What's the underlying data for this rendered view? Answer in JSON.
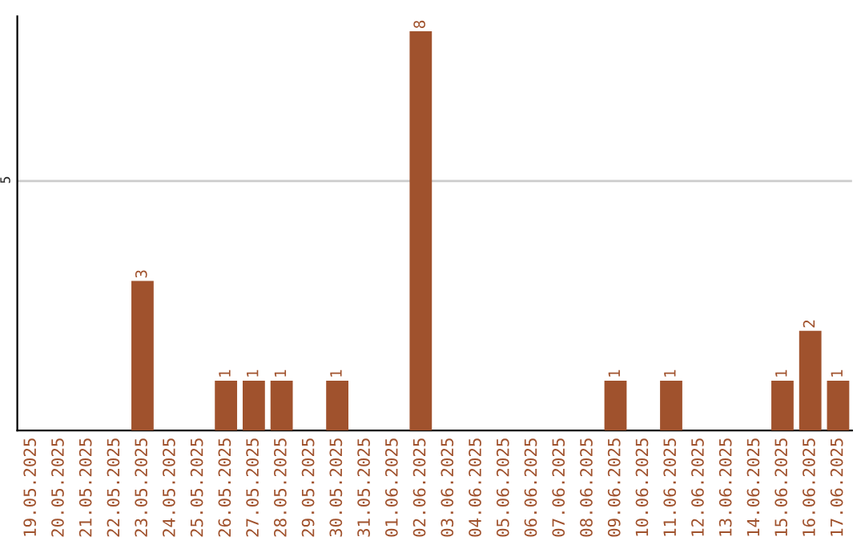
{
  "chart_data": {
    "type": "bar",
    "categories": [
      "19.05.2025",
      "20.05.2025",
      "21.05.2025",
      "22.05.2025",
      "23.05.2025",
      "24.05.2025",
      "25.05.2025",
      "26.05.2025",
      "27.05.2025",
      "28.05.2025",
      "29.05.2025",
      "30.05.2025",
      "31.05.2025",
      "01.06.2025",
      "02.06.2025",
      "03.06.2025",
      "04.06.2025",
      "05.06.2025",
      "06.06.2025",
      "07.06.2025",
      "08.06.2025",
      "09.06.2025",
      "10.06.2025",
      "11.06.2025",
      "12.06.2025",
      "13.06.2025",
      "14.06.2025",
      "15.06.2025",
      "16.06.2025",
      "17.06.2025"
    ],
    "values": [
      0,
      0,
      0,
      0,
      3,
      0,
      0,
      1,
      1,
      1,
      0,
      1,
      0,
      0,
      8,
      0,
      0,
      0,
      0,
      0,
      0,
      1,
      0,
      1,
      0,
      0,
      0,
      1,
      2,
      1
    ],
    "value_labels": [
      null,
      null,
      null,
      null,
      "3",
      null,
      null,
      "1",
      "1",
      "1",
      null,
      "1",
      null,
      null,
      "8",
      null,
      null,
      null,
      null,
      null,
      null,
      "1",
      null,
      "1",
      null,
      null,
      null,
      "1",
      "2",
      "1"
    ],
    "color": "#a0522d",
    "ylim": [
      0,
      8.3
    ],
    "yticks": [
      5
    ],
    "grid": "y"
  }
}
